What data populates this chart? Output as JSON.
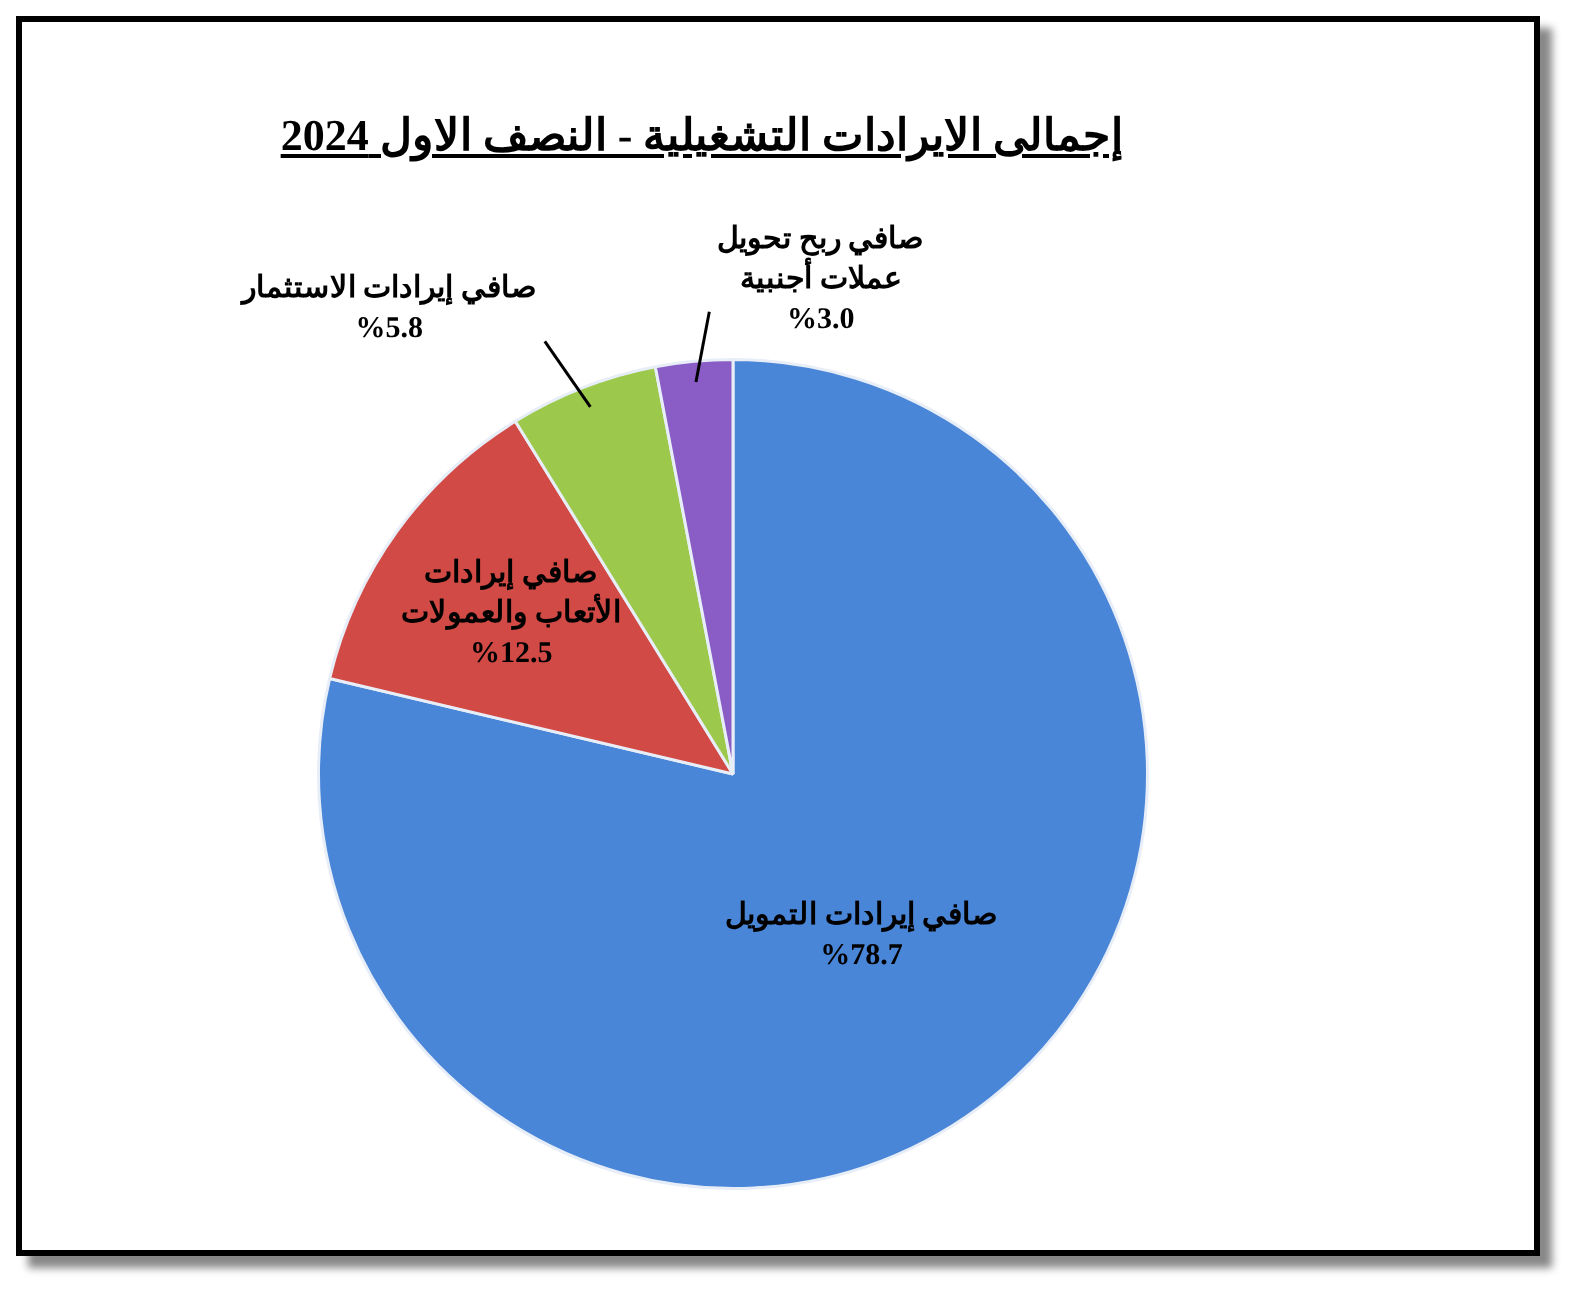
{
  "chart_data": {
    "type": "pie",
    "title": "إجمالى الايرادات التشغيلية - النصف الاول 2024",
    "categories": [
      "صافي إيرادات التمويل",
      "صافي إيرادات الأتعاب والعمولات",
      "صافي إيرادات الاستثمار",
      "صافي ربح تحويل عملات أجنبية"
    ],
    "values": [
      78.7,
      12.5,
      5.8,
      3.0
    ],
    "value_labels": [
      "%78.7",
      "%12.5",
      "%5.8",
      "%3.0"
    ],
    "colors": [
      "#4a86d8",
      "#d24a45",
      "#9cc94b",
      "#8a5cc6"
    ],
    "legend": false
  }
}
